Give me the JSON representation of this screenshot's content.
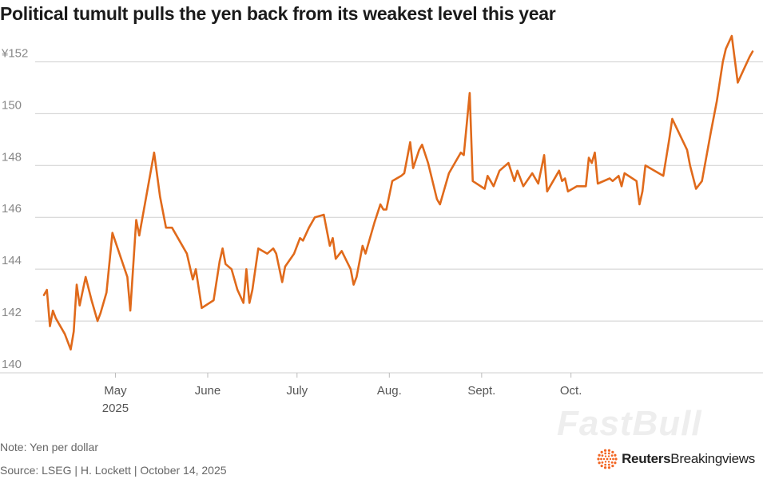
{
  "chart_data": {
    "type": "line",
    "title": "Political tumult pulls the yen back from its weakest level this year",
    "ylim": [
      140,
      153
    ],
    "y_ticks": [
      {
        "value": 140,
        "label": "140"
      },
      {
        "value": 142,
        "label": "142"
      },
      {
        "value": 144,
        "label": "144"
      },
      {
        "value": 146,
        "label": "146"
      },
      {
        "value": 148,
        "label": "148"
      },
      {
        "value": 150,
        "label": "150"
      },
      {
        "value": 152,
        "label": "¥152"
      }
    ],
    "x_ticks": [
      {
        "date": "2025-05-01",
        "label": "May",
        "sublabel": "2025"
      },
      {
        "date": "2025-06-01",
        "label": "June",
        "sublabel": ""
      },
      {
        "date": "2025-07-01",
        "label": "July",
        "sublabel": ""
      },
      {
        "date": "2025-08-01",
        "label": "Aug.",
        "sublabel": ""
      },
      {
        "date": "2025-09-01",
        "label": "Sept.",
        "sublabel": ""
      },
      {
        "date": "2025-10-01",
        "label": "Oct.",
        "sublabel": ""
      }
    ],
    "grid": true,
    "series": [
      {
        "color": "#e06a1b",
        "points": [
          [
            "2025-04-07",
            143.0
          ],
          [
            "2025-04-08",
            143.2
          ],
          [
            "2025-04-09",
            141.8
          ],
          [
            "2025-04-10",
            142.4
          ],
          [
            "2025-04-11",
            142.1
          ],
          [
            "2025-04-14",
            141.5
          ],
          [
            "2025-04-16",
            140.9
          ],
          [
            "2025-04-17",
            141.6
          ],
          [
            "2025-04-18",
            143.4
          ],
          [
            "2025-04-19",
            142.6
          ],
          [
            "2025-04-21",
            143.7
          ],
          [
            "2025-04-23",
            142.8
          ],
          [
            "2025-04-25",
            142.0
          ],
          [
            "2025-04-26",
            142.3
          ],
          [
            "2025-04-28",
            143.1
          ],
          [
            "2025-04-30",
            145.4
          ],
          [
            "2025-05-05",
            143.7
          ],
          [
            "2025-05-06",
            142.4
          ],
          [
            "2025-05-08",
            145.9
          ],
          [
            "2025-05-09",
            145.3
          ],
          [
            "2025-05-14",
            148.5
          ],
          [
            "2025-05-16",
            146.8
          ],
          [
            "2025-05-18",
            145.6
          ],
          [
            "2025-05-20",
            145.6
          ],
          [
            "2025-05-25",
            144.6
          ],
          [
            "2025-05-27",
            143.6
          ],
          [
            "2025-05-28",
            144.0
          ],
          [
            "2025-05-30",
            142.5
          ],
          [
            "2025-06-03",
            142.8
          ],
          [
            "2025-06-05",
            144.3
          ],
          [
            "2025-06-06",
            144.8
          ],
          [
            "2025-06-07",
            144.2
          ],
          [
            "2025-06-09",
            144.0
          ],
          [
            "2025-06-11",
            143.2
          ],
          [
            "2025-06-13",
            142.7
          ],
          [
            "2025-06-14",
            144.0
          ],
          [
            "2025-06-15",
            142.7
          ],
          [
            "2025-06-16",
            143.2
          ],
          [
            "2025-06-18",
            144.8
          ],
          [
            "2025-06-21",
            144.6
          ],
          [
            "2025-06-23",
            144.8
          ],
          [
            "2025-06-24",
            144.6
          ],
          [
            "2025-06-26",
            143.5
          ],
          [
            "2025-06-27",
            144.1
          ],
          [
            "2025-06-30",
            144.6
          ],
          [
            "2025-07-02",
            145.2
          ],
          [
            "2025-07-03",
            145.1
          ],
          [
            "2025-07-05",
            145.6
          ],
          [
            "2025-07-07",
            146.0
          ],
          [
            "2025-07-10",
            146.1
          ],
          [
            "2025-07-12",
            144.9
          ],
          [
            "2025-07-13",
            145.2
          ],
          [
            "2025-07-14",
            144.4
          ],
          [
            "2025-07-16",
            144.7
          ],
          [
            "2025-07-19",
            144.0
          ],
          [
            "2025-07-20",
            143.4
          ],
          [
            "2025-07-21",
            143.7
          ],
          [
            "2025-07-23",
            144.9
          ],
          [
            "2025-07-24",
            144.6
          ],
          [
            "2025-07-27",
            145.8
          ],
          [
            "2025-07-29",
            146.5
          ],
          [
            "2025-07-30",
            146.3
          ],
          [
            "2025-07-31",
            146.3
          ],
          [
            "2025-08-02",
            147.4
          ],
          [
            "2025-08-05",
            147.6
          ],
          [
            "2025-08-06",
            147.7
          ],
          [
            "2025-08-08",
            148.9
          ],
          [
            "2025-08-09",
            147.9
          ],
          [
            "2025-08-11",
            148.6
          ],
          [
            "2025-08-12",
            148.8
          ],
          [
            "2025-08-14",
            148.1
          ],
          [
            "2025-08-17",
            146.7
          ],
          [
            "2025-08-18",
            146.5
          ],
          [
            "2025-08-21",
            147.7
          ],
          [
            "2025-08-25",
            148.5
          ],
          [
            "2025-08-26",
            148.4
          ],
          [
            "2025-08-28",
            150.8
          ],
          [
            "2025-08-29",
            147.4
          ],
          [
            "2025-09-02",
            147.1
          ],
          [
            "2025-09-03",
            147.6
          ],
          [
            "2025-09-05",
            147.2
          ],
          [
            "2025-09-07",
            147.8
          ],
          [
            "2025-09-10",
            148.1
          ],
          [
            "2025-09-12",
            147.4
          ],
          [
            "2025-09-13",
            147.8
          ],
          [
            "2025-09-15",
            147.2
          ],
          [
            "2025-09-18",
            147.7
          ],
          [
            "2025-09-20",
            147.3
          ],
          [
            "2025-09-22",
            148.4
          ],
          [
            "2025-09-23",
            147.0
          ],
          [
            "2025-09-27",
            147.8
          ],
          [
            "2025-09-28",
            147.4
          ],
          [
            "2025-09-29",
            147.5
          ],
          [
            "2025-09-30",
            147.0
          ],
          [
            "2025-10-03",
            147.2
          ],
          [
            "2025-10-06",
            147.2
          ],
          [
            "2025-10-07",
            148.3
          ],
          [
            "2025-10-08",
            148.1
          ],
          [
            "2025-10-09",
            148.5
          ],
          [
            "2025-10-10",
            147.3
          ],
          [
            "2025-10-14",
            147.5
          ],
          [
            "2025-10-15",
            147.4
          ],
          [
            "2025-10-17",
            147.6
          ],
          [
            "2025-10-18",
            147.2
          ],
          [
            "2025-10-19",
            147.7
          ],
          [
            "2025-10-23",
            147.4
          ],
          [
            "2025-10-24",
            146.5
          ],
          [
            "2025-10-25",
            147.0
          ],
          [
            "2025-10-26",
            148.0
          ],
          [
            "2025-11-01",
            147.6
          ],
          [
            "2025-11-03",
            149.0
          ],
          [
            "2025-11-04",
            149.8
          ],
          [
            "2025-11-09",
            148.6
          ],
          [
            "2025-11-10",
            148.0
          ],
          [
            "2025-11-12",
            147.1
          ],
          [
            "2025-11-14",
            147.4
          ],
          [
            "2025-11-17",
            149.3
          ],
          [
            "2025-11-19",
            150.5
          ],
          [
            "2025-11-21",
            152.0
          ],
          [
            "2025-11-22",
            152.5
          ],
          [
            "2025-11-24",
            153.0
          ],
          [
            "2025-11-26",
            151.2
          ],
          [
            "2025-11-28",
            151.7
          ],
          [
            "2025-11-30",
            152.2
          ],
          [
            "2025-12-01",
            152.4
          ]
        ]
      }
    ]
  },
  "footer": {
    "note": "Note: Yen per dollar",
    "source": "Source: LSEG | H. Lockett | October 14, 2025"
  },
  "brand": {
    "name_bold": "Reuters",
    "name_light": "Breakingviews",
    "logo_color": "#f26522",
    "watermark": "FastBull"
  }
}
